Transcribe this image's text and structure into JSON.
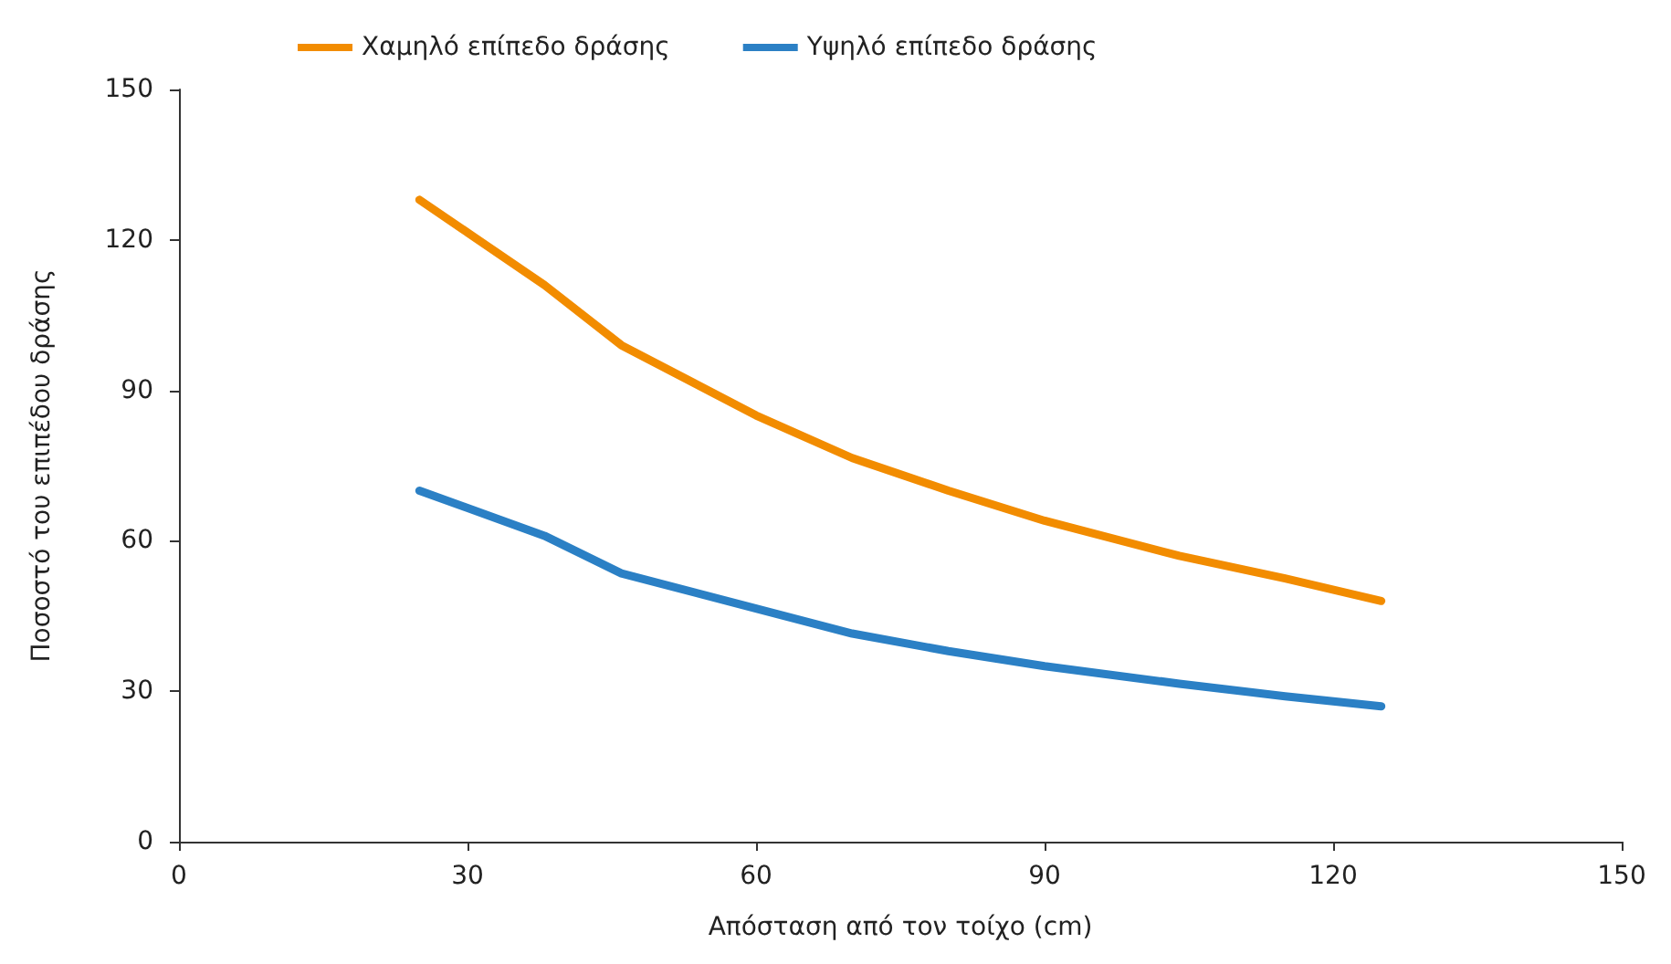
{
  "chart_data": {
    "type": "line",
    "xlabel": "Απόσταση από τον τοίχο (cm)",
    "ylabel": "Ποσοστό του επιπέδου δράσης",
    "x": [
      25,
      38,
      46,
      60,
      70,
      80,
      90,
      104,
      115,
      125
    ],
    "series": [
      {
        "name": "Χαμηλό επίπεδο δράσης",
        "color": "#f28c00",
        "values": [
          128,
          111,
          99,
          85,
          76.5,
          70,
          64,
          57,
          52.5,
          48
        ]
      },
      {
        "name": "Υψηλό επίπεδο δράσης",
        "color": "#2b80c5",
        "values": [
          70,
          61,
          53.5,
          46.5,
          41.5,
          38,
          35,
          31.5,
          29,
          27
        ]
      }
    ],
    "xlim": [
      0,
      150
    ],
    "xticks": [
      0,
      30,
      60,
      90,
      120,
      150
    ],
    "ylim": [
      0,
      150
    ],
    "yticks": [
      0,
      30,
      60,
      90,
      120,
      150
    ],
    "grid": false,
    "legend": "top left",
    "marker": "none",
    "line_style": "solid"
  }
}
